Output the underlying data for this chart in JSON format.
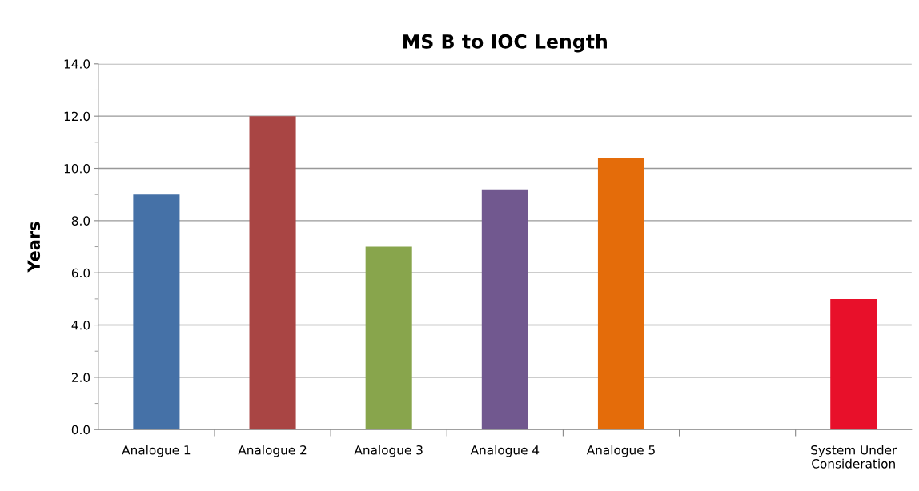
{
  "chart_data": {
    "type": "bar",
    "title": "MS B to IOC Length",
    "ylabel": "Years",
    "categories": [
      "Analogue 1",
      "Analogue 2",
      "Analogue 3",
      "Analogue 4",
      "Analogue 5",
      null,
      "System Under\nConsideration"
    ],
    "values": [
      9.0,
      12.0,
      7.0,
      9.2,
      10.4,
      null,
      5.0
    ],
    "colors": [
      "#4571a7",
      "#a94544",
      "#88a54c",
      "#71588f",
      "#e46c0a",
      "#808080",
      "#e8102a"
    ],
    "ylim": [
      0,
      14
    ],
    "yticks": [
      {
        "value": 0,
        "label": "0.0"
      },
      {
        "value": 2,
        "label": "2.0"
      },
      {
        "value": 4,
        "label": "4.0"
      },
      {
        "value": 6,
        "label": "6.0"
      },
      {
        "value": 8,
        "label": "8.0"
      },
      {
        "value": 10,
        "label": "10.0"
      },
      {
        "value": 12,
        "label": "12.0"
      },
      {
        "value": 14,
        "label": "14.0"
      }
    ],
    "grid": "y",
    "legend": false
  }
}
